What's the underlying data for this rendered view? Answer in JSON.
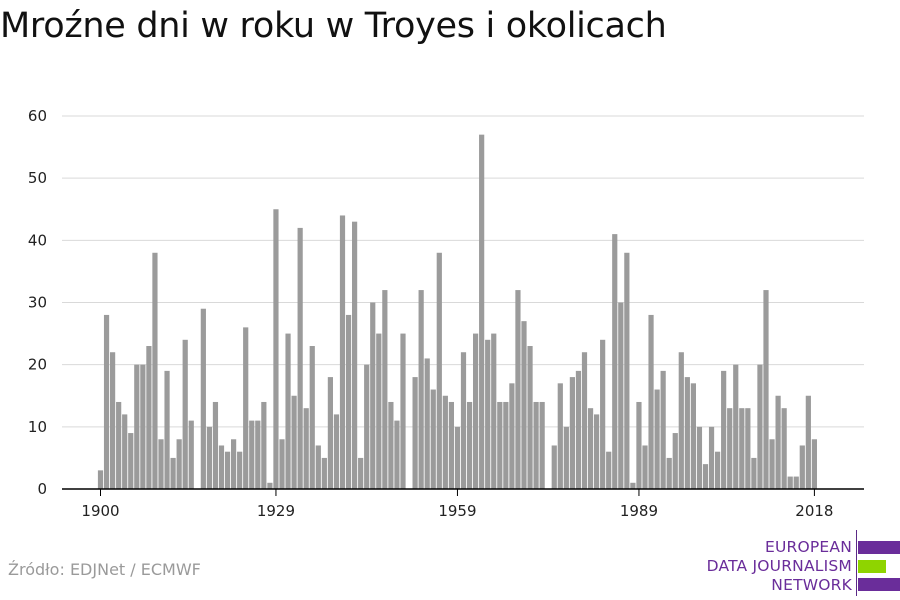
{
  "title": "Mroźne dni w roku w Troyes i okolicach",
  "source": "Źródło: EDJNet / ECMWF",
  "logo": {
    "lines": [
      "EUROPEAN",
      "DATA JOURNALISM",
      "NETWORK"
    ],
    "colors": {
      "purple": "#6a2d9a",
      "green": "#8fd400"
    }
  },
  "colors": {
    "bar": "#9b9b9b",
    "grid": "#d9d9d9",
    "axis": "#000000"
  },
  "chart_data": {
    "type": "bar",
    "title": "Mroźne dni w roku w Troyes i okolicach",
    "xlabel": "",
    "ylabel": "",
    "ylim": [
      0,
      60
    ],
    "yticks": [
      0,
      10,
      20,
      30,
      40,
      50,
      60
    ],
    "xticks": [
      1900,
      1929,
      1959,
      1989,
      2018
    ],
    "grid": true,
    "x": [
      1900,
      1901,
      1902,
      1903,
      1904,
      1905,
      1906,
      1907,
      1908,
      1909,
      1910,
      1911,
      1912,
      1913,
      1914,
      1915,
      1916,
      1917,
      1918,
      1919,
      1920,
      1921,
      1922,
      1923,
      1924,
      1925,
      1926,
      1927,
      1928,
      1929,
      1930,
      1931,
      1932,
      1933,
      1934,
      1935,
      1936,
      1937,
      1938,
      1939,
      1940,
      1941,
      1942,
      1943,
      1944,
      1945,
      1946,
      1947,
      1948,
      1949,
      1950,
      1951,
      1952,
      1953,
      1954,
      1955,
      1956,
      1957,
      1958,
      1959,
      1960,
      1961,
      1962,
      1963,
      1964,
      1965,
      1966,
      1967,
      1968,
      1969,
      1970,
      1971,
      1972,
      1973,
      1974,
      1975,
      1976,
      1977,
      1978,
      1979,
      1980,
      1981,
      1982,
      1983,
      1984,
      1985,
      1986,
      1987,
      1988,
      1989,
      1990,
      1991,
      1992,
      1993,
      1994,
      1995,
      1996,
      1997,
      1998,
      1999,
      2000,
      2001,
      2002,
      2003,
      2004,
      2005,
      2006,
      2007,
      2008,
      2009,
      2010,
      2011,
      2012,
      2013,
      2014,
      2015,
      2016,
      2017,
      2018
    ],
    "values": [
      3,
      28,
      22,
      14,
      12,
      9,
      20,
      20,
      23,
      38,
      8,
      19,
      5,
      8,
      24,
      11,
      0,
      29,
      10,
      14,
      7,
      6,
      8,
      6,
      26,
      11,
      11,
      14,
      1,
      45,
      8,
      25,
      15,
      42,
      13,
      23,
      7,
      5,
      18,
      12,
      44,
      28,
      43,
      5,
      20,
      30,
      25,
      32,
      14,
      11,
      25,
      0,
      18,
      32,
      21,
      16,
      38,
      15,
      14,
      10,
      22,
      14,
      25,
      57,
      24,
      25,
      14,
      14,
      17,
      32,
      27,
      23,
      14,
      14,
      0,
      7,
      17,
      10,
      18,
      19,
      22,
      13,
      12,
      24,
      6,
      41,
      30,
      38,
      1,
      14,
      7,
      28,
      16,
      19,
      5,
      9,
      22,
      18,
      17,
      10,
      4,
      10,
      6,
      19,
      13,
      20,
      13,
      13,
      5,
      20,
      32,
      8,
      15,
      13,
      2,
      2,
      7,
      15,
      8
    ]
  }
}
